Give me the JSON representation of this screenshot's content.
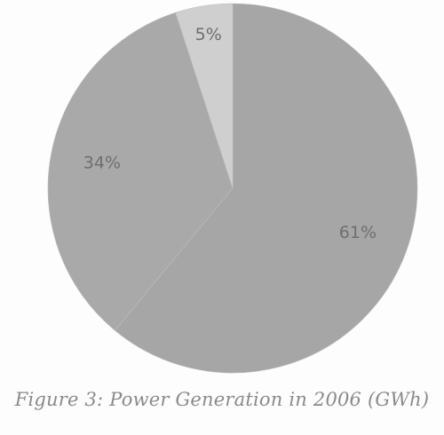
{
  "chart_data": {
    "type": "pie",
    "title": "Figure 3: Power Generation in 2006 (GWh)",
    "slices": [
      {
        "label": "61%",
        "value": 61,
        "color": "#a6a6a6"
      },
      {
        "label": "34%",
        "value": 34,
        "color": "#a9a9a9"
      },
      {
        "label": "5%",
        "value": 5,
        "color": "#cfcfcf"
      }
    ]
  }
}
